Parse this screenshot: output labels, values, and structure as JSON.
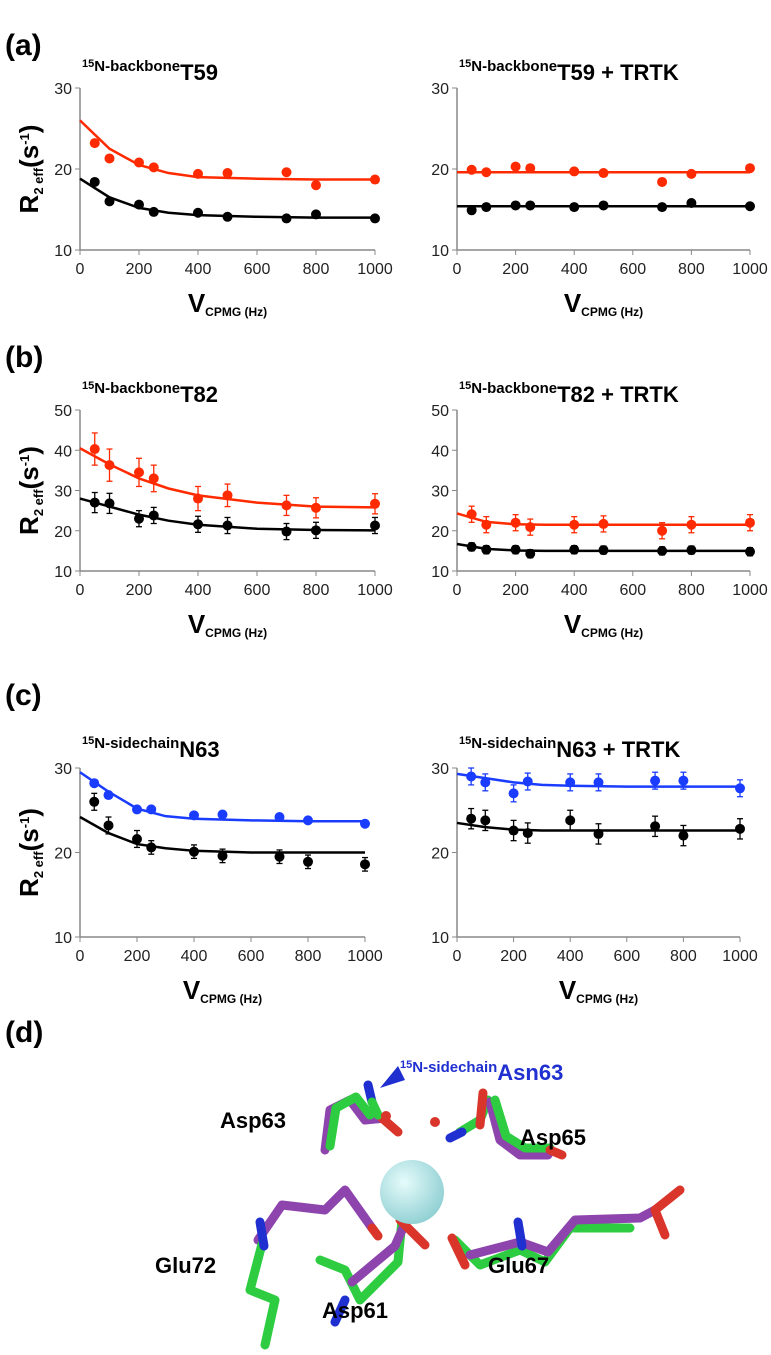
{
  "panels": [
    "(a)",
    "(b)",
    "(c)",
    "(d)"
  ],
  "chart_data": [
    {
      "type": "scatter",
      "title_isotope": "15",
      "title_prefix": "N-backbone",
      "title_main": "T59",
      "ylabel": [
        "R",
        "2 eff",
        "(s",
        "-1",
        ")"
      ],
      "xlabel": [
        "V",
        "CPMG (Hz)"
      ],
      "x": [
        50,
        100,
        200,
        250,
        400,
        500,
        700,
        800,
        1000
      ],
      "xlim": [
        0,
        1000
      ],
      "xticks": [
        0,
        200,
        400,
        600,
        800,
        1000
      ],
      "ylim": [
        10,
        30
      ],
      "yticks": [
        10,
        20,
        30
      ],
      "series": [
        {
          "color": "#ff2a00",
          "values": [
            23.2,
            21.3,
            20.8,
            20.2,
            19.4,
            19.5,
            19.6,
            18.0,
            18.7
          ]
        },
        {
          "color": "#000000",
          "values": [
            18.4,
            16.0,
            15.6,
            14.7,
            14.6,
            14.1,
            13.9,
            14.4,
            13.9
          ]
        }
      ],
      "fits": [
        {
          "color": "#ff2a00",
          "x": [
            0,
            100,
            200,
            300,
            400,
            600,
            800,
            1000
          ],
          "values": [
            26.0,
            22.5,
            20.5,
            19.5,
            19.0,
            18.8,
            18.7,
            18.7
          ]
        },
        {
          "color": "#000000",
          "x": [
            0,
            100,
            200,
            300,
            400,
            600,
            800,
            1000
          ],
          "values": [
            18.8,
            16.5,
            15.2,
            14.6,
            14.3,
            14.1,
            14.0,
            14.0
          ]
        }
      ]
    },
    {
      "type": "scatter",
      "title_isotope": "15",
      "title_prefix": "N-backbone",
      "title_main": "T59 + TRTK",
      "xlabel": [
        "V",
        "CPMG (Hz)"
      ],
      "x": [
        50,
        100,
        200,
        250,
        400,
        500,
        700,
        800,
        1000
      ],
      "xlim": [
        0,
        1000
      ],
      "xticks": [
        0,
        200,
        400,
        600,
        800,
        1000
      ],
      "ylim": [
        10,
        30
      ],
      "yticks": [
        10,
        20,
        30
      ],
      "series": [
        {
          "color": "#ff2a00",
          "values": [
            19.9,
            19.6,
            20.3,
            20.1,
            19.7,
            19.5,
            18.4,
            19.4,
            20.1
          ]
        },
        {
          "color": "#000000",
          "values": [
            14.9,
            15.3,
            15.5,
            15.5,
            15.3,
            15.5,
            15.3,
            15.8,
            15.4
          ]
        }
      ],
      "fits": [
        {
          "color": "#ff2a00",
          "x": [
            0,
            1000
          ],
          "values": [
            19.6,
            19.6
          ]
        },
        {
          "color": "#000000",
          "x": [
            0,
            1000
          ],
          "values": [
            15.4,
            15.4
          ]
        }
      ]
    },
    {
      "type": "scatter",
      "title_isotope": "15",
      "title_prefix": "N-backbone",
      "title_main": "T82",
      "ylabel": [
        "R",
        "2 eff",
        "(s",
        "-1",
        ")"
      ],
      "xlabel": [
        "V",
        "CPMG (Hz)"
      ],
      "x": [
        50,
        100,
        200,
        250,
        400,
        500,
        700,
        800,
        1000
      ],
      "xlim": [
        0,
        1000
      ],
      "xticks": [
        0,
        200,
        400,
        600,
        800,
        1000
      ],
      "ylim": [
        10,
        50
      ],
      "yticks": [
        10,
        20,
        30,
        40,
        50
      ],
      "series": [
        {
          "color": "#ff2a00",
          "values": [
            40.3,
            36.3,
            34.5,
            33.0,
            28.0,
            28.8,
            26.3,
            25.7,
            26.7
          ],
          "errors": [
            4,
            4,
            3.5,
            3.3,
            3,
            2.8,
            2.5,
            2.5,
            2.5
          ]
        },
        {
          "color": "#000000",
          "values": [
            27.0,
            26.8,
            23.0,
            23.8,
            21.6,
            21.3,
            19.8,
            20.1,
            21.3
          ],
          "errors": [
            2.5,
            2.5,
            2,
            2,
            2,
            2,
            2,
            2,
            2
          ]
        }
      ],
      "fits": [
        {
          "color": "#ff2a00",
          "x": [
            0,
            100,
            200,
            300,
            400,
            600,
            800,
            1000
          ],
          "values": [
            40.5,
            36.5,
            33.0,
            30.5,
            28.8,
            27.0,
            26.0,
            25.8
          ]
        },
        {
          "color": "#000000",
          "x": [
            0,
            100,
            200,
            300,
            400,
            600,
            800,
            1000
          ],
          "values": [
            28.0,
            26.0,
            24.0,
            22.5,
            21.5,
            20.5,
            20.2,
            20.1
          ]
        }
      ]
    },
    {
      "type": "scatter",
      "title_isotope": "15",
      "title_prefix": "N-backbone",
      "title_main": "T82 + TRTK",
      "xlabel": [
        "V",
        "CPMG (Hz)"
      ],
      "x": [
        50,
        100,
        200,
        250,
        400,
        500,
        700,
        800,
        1000
      ],
      "xlim": [
        0,
        1000
      ],
      "xticks": [
        0,
        200,
        400,
        600,
        800,
        1000
      ],
      "ylim": [
        10,
        50
      ],
      "yticks": [
        10,
        20,
        30,
        40,
        50
      ],
      "series": [
        {
          "color": "#ff2a00",
          "values": [
            24.1,
            21.5,
            22.0,
            20.9,
            21.5,
            21.7,
            20.0,
            21.5,
            22.0
          ],
          "errors": [
            2,
            2,
            2,
            2,
            2,
            2,
            2,
            2,
            2
          ]
        },
        {
          "color": "#000000",
          "values": [
            16.0,
            15.3,
            15.3,
            14.3,
            15.3,
            15.2,
            15.0,
            15.2,
            14.8
          ],
          "errors": [
            1,
            1,
            1,
            1,
            1,
            1,
            1,
            1,
            1
          ]
        }
      ],
      "fits": [
        {
          "color": "#ff2a00",
          "x": [
            0,
            100,
            200,
            300,
            400,
            600,
            800,
            1000
          ],
          "values": [
            24.3,
            22.2,
            21.6,
            21.5,
            21.5,
            21.5,
            21.5,
            21.5
          ]
        },
        {
          "color": "#000000",
          "x": [
            0,
            100,
            200,
            300,
            400,
            600,
            800,
            1000
          ],
          "values": [
            16.7,
            15.5,
            15.1,
            15.0,
            15.0,
            15.0,
            15.0,
            15.0
          ]
        }
      ]
    },
    {
      "type": "scatter",
      "title_isotope": "15",
      "title_prefix": "N-sidechain",
      "title_main": "N63",
      "ylabel": [
        "R",
        "2 eff",
        "(s",
        "-1",
        ")"
      ],
      "xlabel": [
        "V",
        "CPMG (Hz)"
      ],
      "x": [
        50,
        100,
        200,
        250,
        400,
        500,
        700,
        800,
        1000
      ],
      "xlim": [
        0,
        1000
      ],
      "xticks": [
        0,
        200,
        400,
        600,
        800,
        1000
      ],
      "ylim": [
        10,
        30
      ],
      "yticks": [
        10,
        20,
        30
      ],
      "series": [
        {
          "color": "#1a3cff",
          "values": [
            28.2,
            26.8,
            25.1,
            25.1,
            24.4,
            24.5,
            24.2,
            23.8,
            23.4
          ]
        },
        {
          "color": "#000000",
          "values": [
            26.0,
            23.2,
            21.6,
            20.6,
            20.1,
            19.6,
            19.5,
            18.9,
            18.6
          ],
          "errors": [
            1,
            1,
            1,
            0.8,
            0.8,
            0.8,
            0.8,
            0.8,
            0.8
          ]
        }
      ],
      "fits": [
        {
          "color": "#1a3cff",
          "x": [
            0,
            100,
            200,
            300,
            400,
            600,
            800,
            1000
          ],
          "values": [
            29.5,
            27.2,
            25.2,
            24.3,
            24.0,
            23.8,
            23.7,
            23.7
          ]
        },
        {
          "color": "#000000",
          "x": [
            0,
            100,
            200,
            300,
            400,
            600,
            800,
            1000
          ],
          "values": [
            24.2,
            22.3,
            21.0,
            20.5,
            20.2,
            20.0,
            20.0,
            20.0
          ]
        }
      ]
    },
    {
      "type": "scatter",
      "title_isotope": "15",
      "title_prefix": "N-sidechain",
      "title_main": "N63 + TRTK",
      "xlabel": [
        "V",
        "CPMG (Hz)"
      ],
      "x": [
        50,
        100,
        200,
        250,
        400,
        500,
        700,
        800,
        1000
      ],
      "xlim": [
        0,
        1000
      ],
      "xticks": [
        0,
        200,
        400,
        600,
        800,
        1000
      ],
      "ylim": [
        10,
        30
      ],
      "yticks": [
        10,
        20,
        30
      ],
      "series": [
        {
          "color": "#1a3cff",
          "values": [
            29.0,
            28.3,
            27.0,
            28.4,
            28.3,
            28.3,
            28.5,
            28.5,
            27.6
          ],
          "errors": [
            1,
            1,
            1,
            1,
            1,
            1,
            1,
            1,
            1
          ]
        },
        {
          "color": "#000000",
          "values": [
            24.0,
            23.8,
            22.6,
            22.3,
            23.8,
            22.2,
            23.1,
            22.0,
            22.8
          ],
          "errors": [
            1.2,
            1.2,
            1.2,
            1.2,
            1.2,
            1.2,
            1.2,
            1.2,
            1.2
          ]
        }
      ],
      "fits": [
        {
          "color": "#1a3cff",
          "x": [
            0,
            100,
            200,
            300,
            400,
            600,
            800,
            1000
          ],
          "values": [
            29.3,
            28.8,
            28.3,
            28.0,
            27.9,
            27.8,
            27.8,
            27.8
          ]
        },
        {
          "color": "#000000",
          "x": [
            0,
            100,
            200,
            300,
            400,
            600,
            800,
            1000
          ],
          "values": [
            23.5,
            23.0,
            22.7,
            22.6,
            22.6,
            22.6,
            22.6,
            22.6
          ]
        }
      ]
    }
  ],
  "structure": {
    "annotation_isotope": "15",
    "annotation_prefix": "N-sidechain",
    "annotation_residue": "Asn63",
    "labels": [
      "Asp63",
      "Asp65",
      "Glu72",
      "Asp61",
      "Glu67"
    ]
  }
}
